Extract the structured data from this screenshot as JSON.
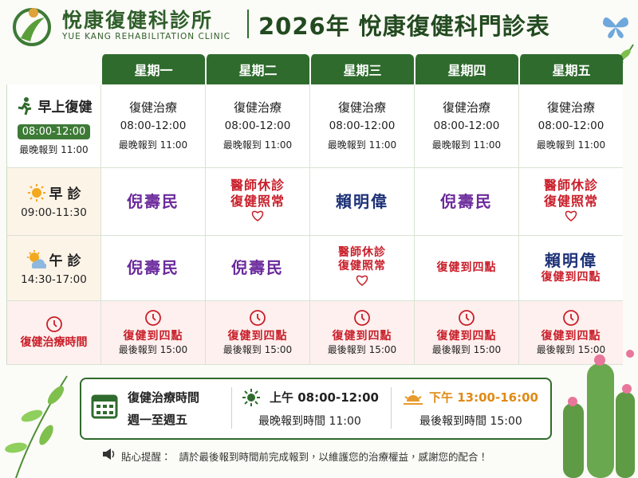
{
  "header": {
    "clinic_name": "悅康復健科診所",
    "clinic_name_en": "YUE KANG REHABILITATION CLINIC",
    "title": "2026年 悅康復健科門診表"
  },
  "table": {
    "days": [
      "星期一",
      "星期二",
      "星期三",
      "星期四",
      "星期五"
    ],
    "rows": [
      {
        "label": "早上復健",
        "time": "08:00-12:00",
        "note": "最晚報到 11:00",
        "cells": [
          [
            "復健治療",
            "08:00-12:00",
            "最晚報到 11:00"
          ],
          [
            "復健治療",
            "08:00-12:00",
            "最晚報到 11:00"
          ],
          [
            "復健治療",
            "08:00-12:00",
            "最晚報到 11:00"
          ],
          [
            "復健治療",
            "08:00-12:00",
            "最晚報到 11:00"
          ],
          [
            "復健治療",
            "08:00-12:00",
            "最晚報到 11:00"
          ]
        ]
      },
      {
        "label": "早 診",
        "time": "09:00-11:30",
        "cells": [
          [
            "倪壽民"
          ],
          [
            "醫師休診",
            "復健照常"
          ],
          [
            "賴明偉"
          ],
          [
            "倪壽民"
          ],
          [
            "醫師休診",
            "復健照常"
          ]
        ]
      },
      {
        "label": "午 診",
        "time": "14:30-17:00",
        "cells": [
          [
            "倪壽民"
          ],
          [
            "倪壽民"
          ],
          [
            "醫師休診",
            "復健照常"
          ],
          [
            "復健到四點"
          ],
          [
            "賴明偉",
            "復健到四點"
          ]
        ]
      },
      {
        "label": "復健治療時間",
        "cells": [
          [
            "復健到四點",
            "最後報到 15:00"
          ],
          [
            "復健到四點",
            "最後報到 15:00"
          ],
          [
            "復健到四點",
            "最後報到 15:00"
          ],
          [
            "復健到四點",
            "最後報到 15:00"
          ],
          [
            "復健到四點",
            "最後報到 15:00"
          ]
        ]
      }
    ]
  },
  "footer": {
    "heading": "復健治療時間",
    "days": "週一至週五",
    "morning": "上午 08:00-12:00",
    "morning_note": "最晚報到時間 11:00",
    "afternoon": "下午 13:00-16:00",
    "afternoon_note": "最後報到時間 15:00"
  },
  "notice": {
    "label": "貼心提醒：",
    "text": "請於最後報到時間前完成報到，以維護您的治療權益，感謝您的配合！"
  }
}
